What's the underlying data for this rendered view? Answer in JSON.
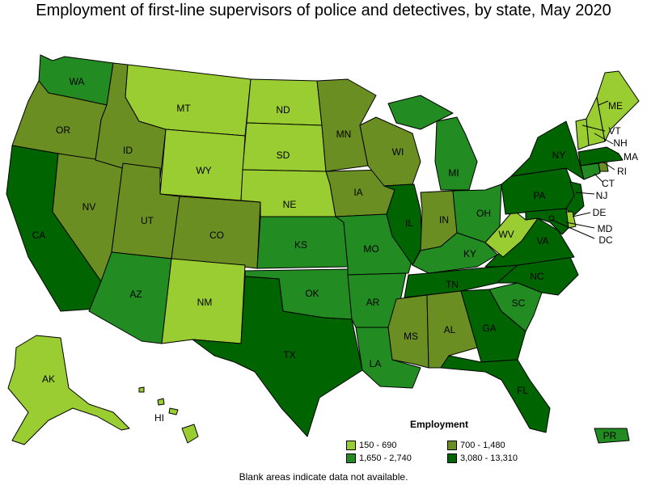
{
  "title": "Employment of first-line supervisors of police and detectives, by state, May 2020",
  "colors": {
    "c1": "#9acd32",
    "c2": "#6b8e23",
    "c3": "#228b22",
    "c4": "#006400"
  },
  "legend": {
    "title": "Employment",
    "items": [
      {
        "label": "150 - 690",
        "color_key": "c1"
      },
      {
        "label": "700 - 1,480",
        "color_key": "c2"
      },
      {
        "label": "1,650 - 2,740",
        "color_key": "c3"
      },
      {
        "label": "3,080 - 13,310",
        "color_key": "c4"
      }
    ]
  },
  "note": "Blank areas indicate data not available.",
  "states": {
    "WA": "c3",
    "OR": "c2",
    "CA": "c4",
    "NV": "c2",
    "ID": "c2",
    "MT": "c1",
    "WY": "c1",
    "UT": "c2",
    "AZ": "c3",
    "CO": "c2",
    "NM": "c1",
    "ND": "c1",
    "SD": "c1",
    "NE": "c1",
    "KS": "c3",
    "OK": "c3",
    "TX": "c4",
    "MN": "c2",
    "IA": "c2",
    "MO": "c3",
    "AR": "c3",
    "LA": "c3",
    "WI": "c2",
    "IL": "c4",
    "MI": "c3",
    "IN": "c2",
    "OH": "c3",
    "KY": "c3",
    "TN": "c4",
    "MS": "c2",
    "AL": "c2",
    "GA": "c4",
    "FL": "c4",
    "SC": "c3",
    "NC": "c4",
    "VA": "c4",
    "WV": "c1",
    "PA": "c4",
    "NY": "c4",
    "VT": "c1",
    "NH": "c1",
    "ME": "c1",
    "MA": "c4",
    "RI": "c2",
    "CT": "c3",
    "NJ": "c4",
    "DE": "c1",
    "MD": "c4",
    "DC": "c4",
    "AK": "c1",
    "HI": "c1",
    "PR": "c3"
  },
  "labels": {
    "WA": "WA",
    "OR": "OR",
    "CA": "CA",
    "NV": "NV",
    "ID": "ID",
    "MT": "MT",
    "WY": "WY",
    "UT": "UT",
    "AZ": "AZ",
    "CO": "CO",
    "NM": "NM",
    "ND": "ND",
    "SD": "SD",
    "NE": "NE",
    "KS": "KS",
    "OK": "OK",
    "TX": "TX",
    "MN": "MN",
    "IA": "IA",
    "MO": "MO",
    "AR": "AR",
    "LA": "LA",
    "WI": "WI",
    "IL": "IL",
    "MI": "MI",
    "IN": "IN",
    "OH": "OH",
    "KY": "KY",
    "TN": "TN",
    "MS": "MS",
    "AL": "AL",
    "GA": "GA",
    "FL": "FL",
    "SC": "SC",
    "NC": "NC",
    "VA": "VA",
    "WV": "WV",
    "PA": "PA",
    "NY": "NY",
    "VT": "VT",
    "NH": "NH",
    "ME": "ME",
    "MA": "MA",
    "RI": "RI",
    "CT": "CT",
    "NJ": "NJ",
    "DE": "DE",
    "MD": "MD",
    "DC": "DC",
    "AK": "AK",
    "HI": "HI",
    "PR": "PR"
  }
}
